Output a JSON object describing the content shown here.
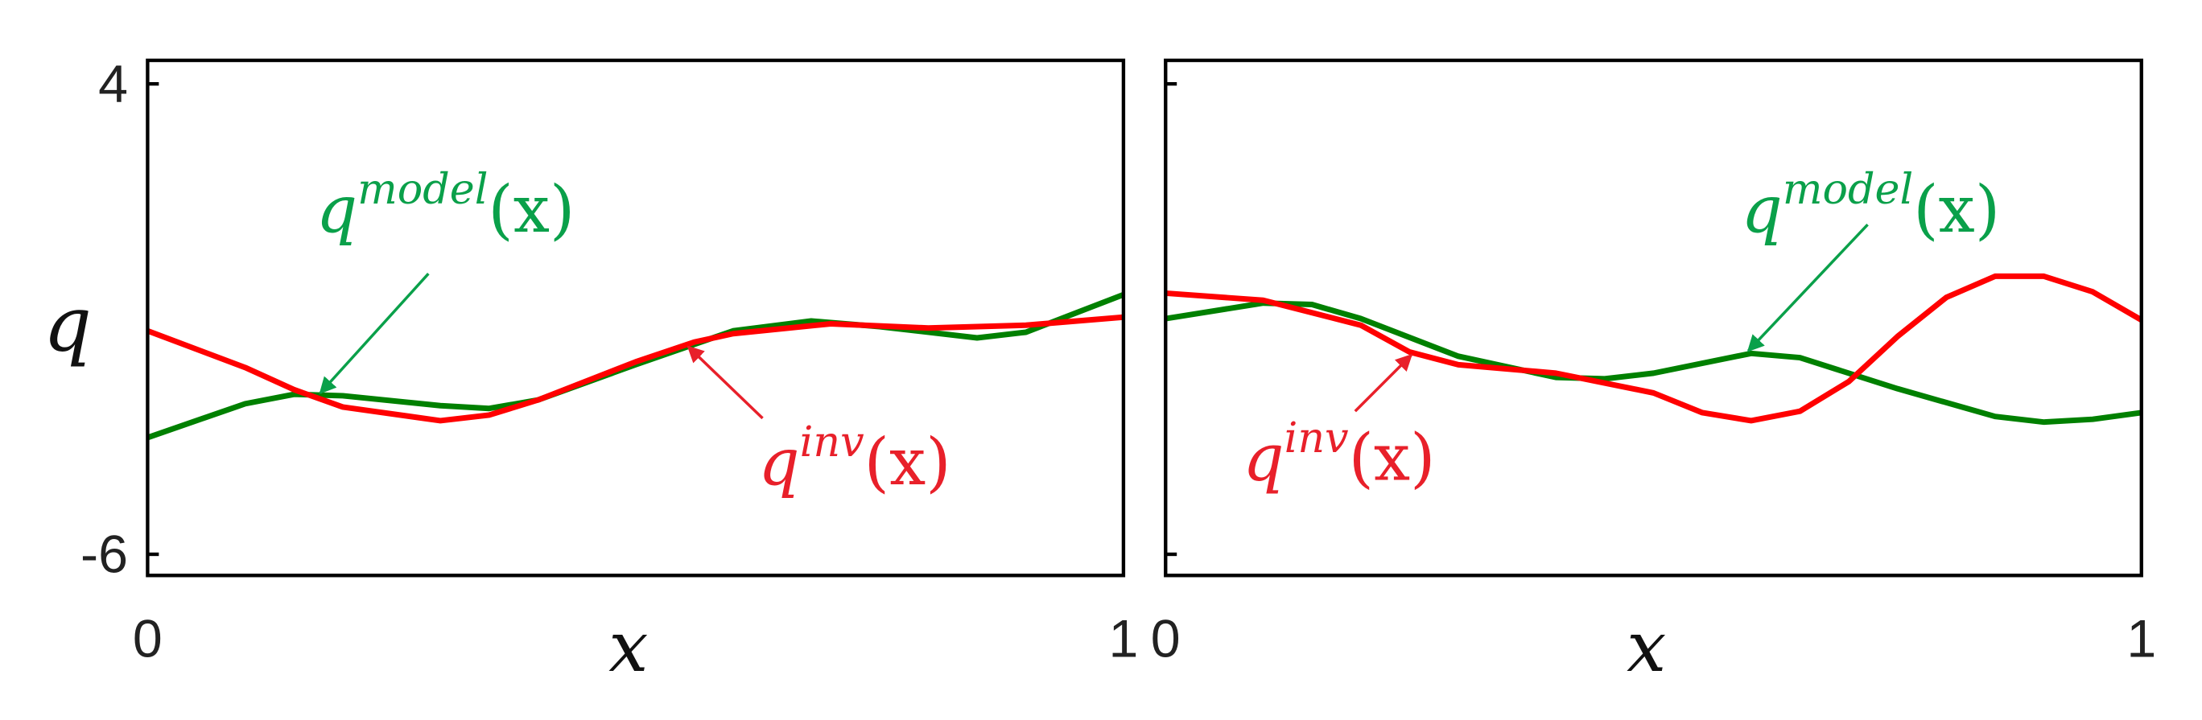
{
  "chart_data": [
    {
      "type": "line",
      "xlabel": "x",
      "ylabel": "q",
      "xlim": [
        0,
        1
      ],
      "xticks": [
        0,
        1
      ],
      "ylim": [
        -6.45,
        4.5
      ],
      "yticks": [
        -6,
        4
      ],
      "ytick_labels": true,
      "series": [
        {
          "name": "model",
          "color": "#008000",
          "x": [
            0,
            0.1,
            0.15,
            0.2,
            0.3,
            0.35,
            0.4,
            0.5,
            0.6,
            0.68,
            0.75,
            0.85,
            0.9,
            1.0
          ],
          "values": [
            -3.52,
            -2.8,
            -2.6,
            -2.63,
            -2.84,
            -2.9,
            -2.72,
            -1.97,
            -1.25,
            -1.04,
            -1.16,
            -1.4,
            -1.28,
            -0.48
          ]
        },
        {
          "name": "inv",
          "color": "#ff0000",
          "x": [
            0,
            0.1,
            0.15,
            0.2,
            0.3,
            0.35,
            0.4,
            0.5,
            0.56,
            0.6,
            0.7,
            0.8,
            0.9,
            1.0
          ],
          "values": [
            -1.25,
            -2.03,
            -2.5,
            -2.87,
            -3.16,
            -3.04,
            -2.72,
            -1.91,
            -1.49,
            -1.31,
            -1.1,
            -1.19,
            -1.13,
            -0.96
          ]
        }
      ],
      "annotations": [
        {
          "text": "q",
          "sup": "model",
          "tail": "(x)",
          "color": "#0aa04a"
        },
        {
          "text": "q",
          "sup": "inv",
          "tail": "(x)",
          "color": "#e8202a"
        }
      ]
    },
    {
      "type": "line",
      "xlabel": "x",
      "xlim": [
        0,
        1
      ],
      "xticks": [
        0,
        1
      ],
      "ylim": [
        -6.45,
        4.5
      ],
      "yticks": [
        -6,
        4
      ],
      "ytick_labels": false,
      "series": [
        {
          "name": "model",
          "color": "#008000",
          "x": [
            0,
            0.1,
            0.15,
            0.2,
            0.3,
            0.4,
            0.45,
            0.5,
            0.6,
            0.65,
            0.75,
            0.85,
            0.9,
            0.95,
            1.0
          ],
          "values": [
            -0.99,
            -0.66,
            -0.69,
            -0.99,
            -1.79,
            -2.24,
            -2.27,
            -2.15,
            -1.73,
            -1.82,
            -2.48,
            -3.07,
            -3.19,
            -3.13,
            -2.99
          ]
        },
        {
          "name": "inv",
          "color": "#ff0000",
          "x": [
            0,
            0.1,
            0.2,
            0.25,
            0.3,
            0.4,
            0.5,
            0.55,
            0.6,
            0.65,
            0.7,
            0.75,
            0.8,
            0.85,
            0.9,
            0.95,
            1.0
          ],
          "values": [
            -0.45,
            -0.6,
            -1.13,
            -1.7,
            -1.97,
            -2.15,
            -2.57,
            -2.99,
            -3.16,
            -2.96,
            -2.33,
            -1.37,
            -0.54,
            -0.09,
            -0.09,
            -0.42,
            -1.02
          ]
        }
      ],
      "annotations": [
        {
          "text": "q",
          "sup": "model",
          "tail": "(x)",
          "color": "#0aa04a"
        },
        {
          "text": "q",
          "sup": "inv",
          "tail": "(x)",
          "color": "#e8202a"
        }
      ]
    }
  ]
}
